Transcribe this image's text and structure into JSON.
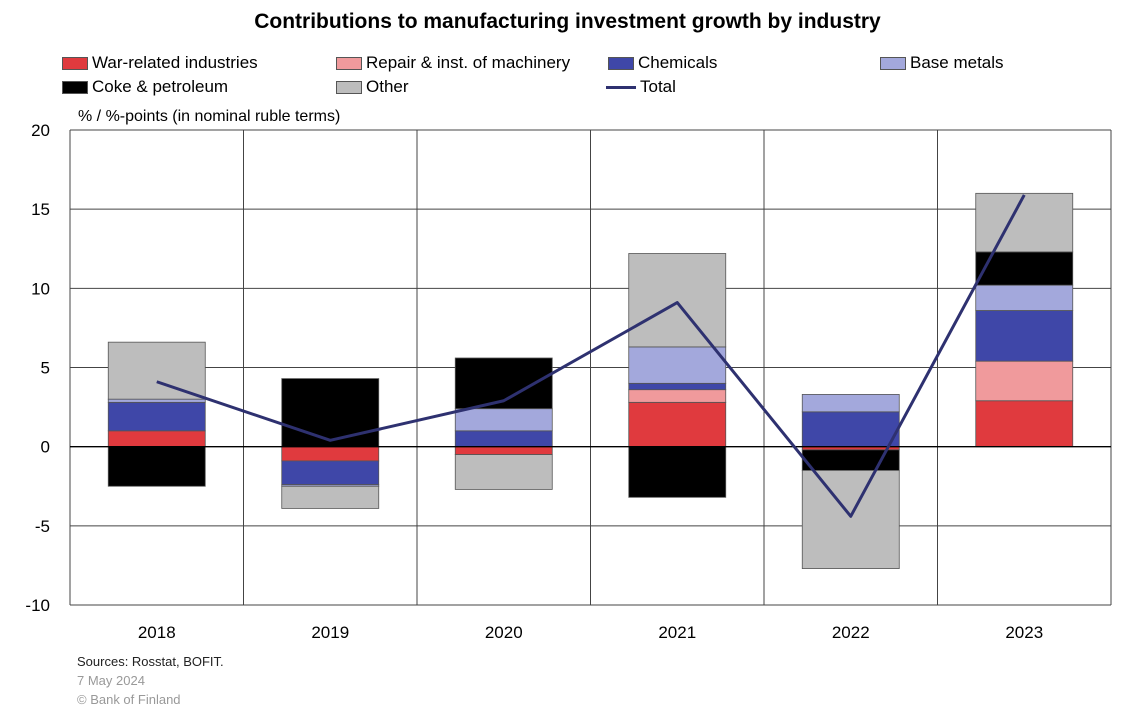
{
  "chart_data": {
    "type": "bar",
    "stacked": true,
    "title": "Contributions to manufacturing investment growth by industry",
    "ylabel": "% / %-points (in nominal ruble terms)",
    "categories": [
      "2018",
      "2019",
      "2020",
      "2021",
      "2022",
      "2023"
    ],
    "ylim": [
      -10,
      20
    ],
    "yticks": [
      -10,
      -5,
      0,
      5,
      10,
      15,
      20
    ],
    "grid": true,
    "legend_position": "top",
    "series": [
      {
        "name": "War-related industries",
        "kind": "bar",
        "color": "#e03a3e",
        "values": [
          1.0,
          -0.9,
          -0.5,
          2.8,
          -0.2,
          2.9
        ]
      },
      {
        "name": "Repair & inst. of machinery",
        "kind": "bar",
        "color": "#f09a9c",
        "values": [
          0.0,
          0.0,
          0.0,
          0.8,
          0.0,
          2.5
        ]
      },
      {
        "name": "Chemicals",
        "kind": "bar",
        "color": "#3f47a8",
        "values": [
          1.8,
          -1.5,
          1.0,
          0.4,
          2.2,
          3.2
        ]
      },
      {
        "name": "Base metals",
        "kind": "bar",
        "color": "#a3a8dc",
        "values": [
          0.2,
          -0.1,
          1.4,
          2.3,
          1.1,
          1.6
        ]
      },
      {
        "name": "Coke & petroleum",
        "kind": "bar",
        "color": "#000000",
        "values": [
          -2.5,
          4.3,
          3.2,
          -3.2,
          -1.3,
          2.1
        ]
      },
      {
        "name": "Other",
        "kind": "bar",
        "color": "#bdbdbd",
        "values": [
          3.6,
          -1.4,
          -2.2,
          5.9,
          -6.2,
          3.7
        ]
      },
      {
        "name": "Total",
        "kind": "line",
        "color": "#2e3170",
        "values": [
          4.1,
          0.4,
          2.9,
          9.1,
          -4.4,
          15.9
        ]
      }
    ],
    "notes": {
      "sources": "Sources: Rosstat, BOFIT.",
      "date": "7 May 2024",
      "copyright": "© Bank of Finland"
    }
  }
}
